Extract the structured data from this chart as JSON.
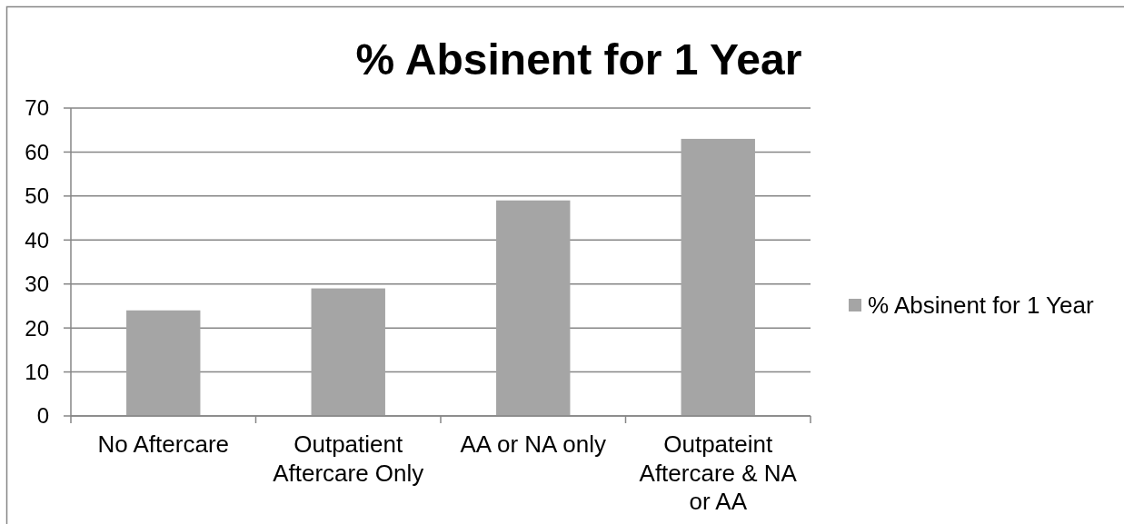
{
  "chart_data": {
    "type": "bar",
    "title": "% Absinent for 1 Year",
    "categories": [
      "No Aftercare",
      "Outpatient Aftercare Only",
      "AA or NA only",
      "Outpateint Aftercare & NA or AA"
    ],
    "series": [
      {
        "name": "% Absinent for 1 Year",
        "color": "#a5a5a5",
        "values": [
          24,
          29,
          49,
          63
        ]
      }
    ],
    "ylim": [
      0,
      70
    ],
    "yticks": [
      0,
      10,
      20,
      30,
      40,
      50,
      60,
      70
    ],
    "grid": "y",
    "legend": "right"
  }
}
